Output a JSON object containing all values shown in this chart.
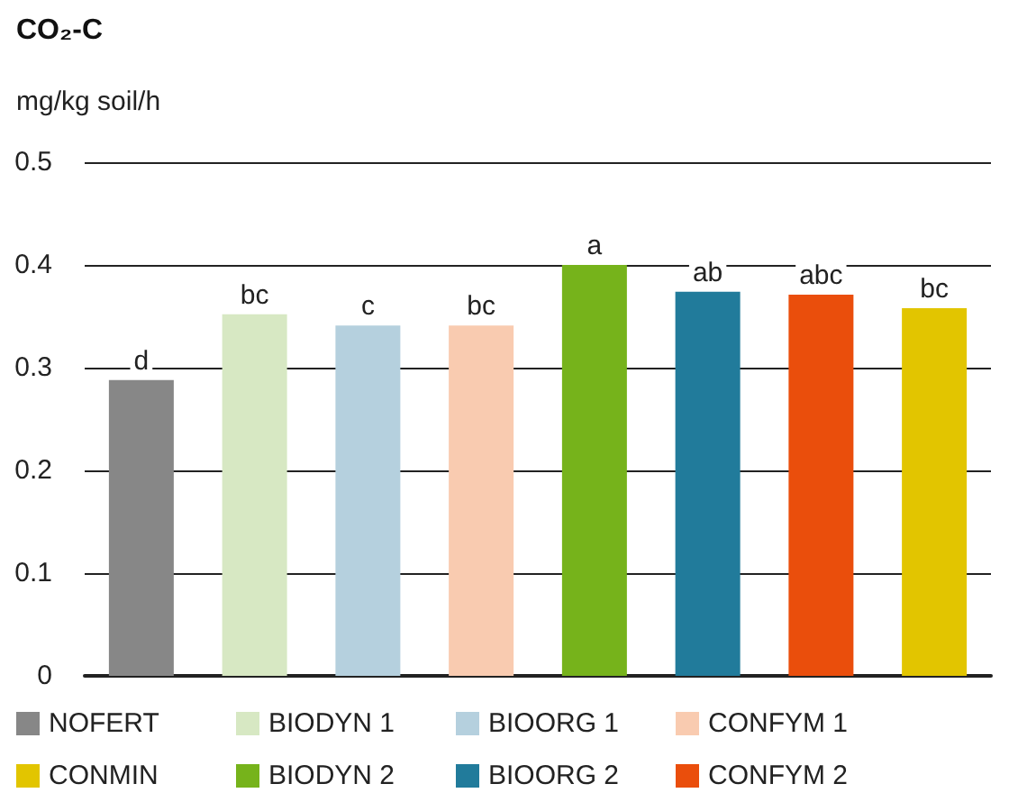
{
  "chart_data": {
    "type": "bar",
    "title": "CO₂-C",
    "ylabel": "mg/kg soil/h",
    "categories": [
      null,
      null,
      null,
      null,
      null,
      null,
      null,
      null
    ],
    "series": [
      {
        "name": "NOFERT",
        "color": "#878787",
        "values": [
          0.288,
          null,
          null,
          null,
          null,
          null,
          null,
          null
        ],
        "value_labels": [
          "d",
          null,
          null,
          null,
          null,
          null,
          null,
          null
        ]
      },
      {
        "name": "BIODYN 1",
        "color": "#d7e8c3",
        "values": [
          null,
          0.352,
          null,
          null,
          null,
          null,
          null,
          null
        ],
        "value_labels": [
          null,
          "bc",
          null,
          null,
          null,
          null,
          null,
          null
        ]
      },
      {
        "name": "BIOORG 1",
        "color": "#b5d0de",
        "values": [
          null,
          null,
          0.341,
          null,
          null,
          null,
          null,
          null
        ],
        "value_labels": [
          null,
          null,
          "c",
          null,
          null,
          null,
          null,
          null
        ]
      },
      {
        "name": "CONFYM 1",
        "color": "#f9cbb0",
        "values": [
          null,
          null,
          null,
          0.341,
          null,
          null,
          null,
          null
        ],
        "value_labels": [
          null,
          null,
          null,
          "bc",
          null,
          null,
          null,
          null
        ]
      },
      {
        "name": "CONMIN",
        "color": "#e2c500",
        "values": [
          null,
          null,
          null,
          null,
          null,
          null,
          null,
          0.358
        ],
        "value_labels": [
          null,
          null,
          null,
          null,
          null,
          null,
          null,
          "bc"
        ]
      },
      {
        "name": "BIODYN 2",
        "color": "#76b31b",
        "values": [
          null,
          null,
          null,
          null,
          0.4,
          null,
          null,
          null
        ],
        "value_labels": [
          null,
          null,
          null,
          null,
          "a",
          null,
          null,
          null
        ]
      },
      {
        "name": "BIOORG 2",
        "color": "#217b9b",
        "values": [
          null,
          null,
          null,
          null,
          null,
          0.374,
          null,
          null
        ],
        "value_labels": [
          null,
          null,
          null,
          null,
          null,
          "ab",
          null,
          null
        ]
      },
      {
        "name": "CONFYM 2",
        "color": "#ea4e0c",
        "values": [
          null,
          null,
          null,
          null,
          null,
          null,
          0.371,
          null
        ],
        "value_labels": [
          null,
          null,
          null,
          null,
          null,
          null,
          "abc",
          null
        ]
      }
    ],
    "ylim": [
      0,
      0.5
    ],
    "yticks": [
      0,
      0.1,
      0.2,
      0.3,
      0.4,
      0.5
    ],
    "grid": "y",
    "legend": "bottom",
    "tick_labels": "y"
  }
}
